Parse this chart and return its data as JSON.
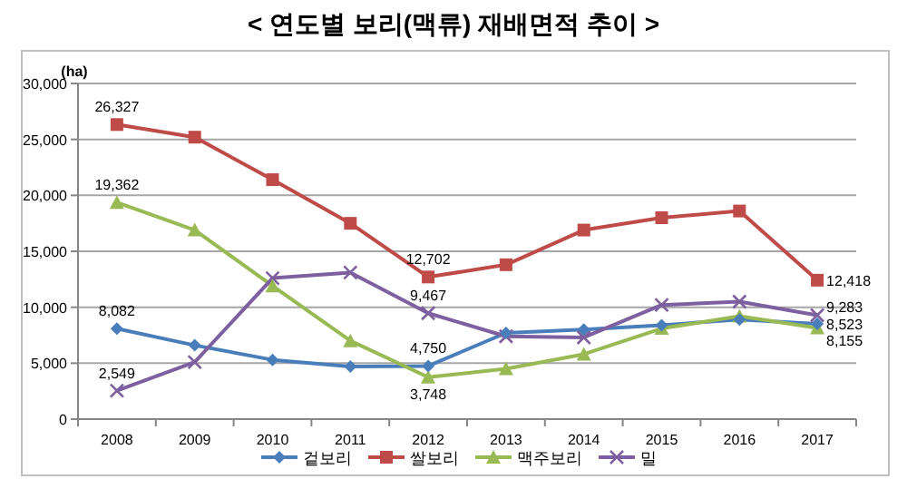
{
  "chart_data": {
    "type": "line",
    "title": "< 연도별 보리(맥류) 재배면적 추이 >",
    "ylabel": "(ha)",
    "categories": [
      "2008",
      "2009",
      "2010",
      "2011",
      "2012",
      "2013",
      "2014",
      "2015",
      "2016",
      "2017"
    ],
    "ylim": [
      0,
      30000
    ],
    "yticks": [
      {
        "value": 0,
        "label": "0"
      },
      {
        "value": 5000,
        "label": "5,000"
      },
      {
        "value": 10000,
        "label": "10,000"
      },
      {
        "value": 15000,
        "label": "15,000"
      },
      {
        "value": 20000,
        "label": "20,000"
      },
      {
        "value": 25000,
        "label": "25,000"
      },
      {
        "value": 30000,
        "label": "30,000"
      }
    ],
    "grid": "y",
    "legend": "bottom",
    "line_style": "solid",
    "series": [
      {
        "name": "겉보리",
        "color": "#4a7ebb",
        "marker": "diamond",
        "values": [
          8082,
          6600,
          5300,
          4700,
          4750,
          7700,
          8000,
          8400,
          8900,
          8523
        ],
        "value_labels": [
          "8,082",
          null,
          null,
          null,
          "4,750",
          null,
          null,
          null,
          null,
          "8,523"
        ]
      },
      {
        "name": "쌀보리",
        "color": "#be4b48",
        "marker": "square",
        "values": [
          26327,
          25200,
          21400,
          17500,
          12702,
          13800,
          16900,
          18000,
          18600,
          12418
        ],
        "value_labels": [
          "26,327",
          null,
          null,
          null,
          "12,702",
          null,
          null,
          null,
          null,
          "12,418"
        ]
      },
      {
        "name": "맥주보리",
        "color": "#98b954",
        "marker": "triangle",
        "values": [
          19362,
          16900,
          11900,
          7000,
          3748,
          4500,
          5800,
          8100,
          9200,
          8155
        ],
        "value_labels": [
          "19,362",
          null,
          null,
          null,
          "3,748",
          null,
          null,
          null,
          null,
          "8,155"
        ]
      },
      {
        "name": "밀",
        "color": "#7d60a0",
        "marker": "cross",
        "values": [
          2549,
          5100,
          12600,
          13100,
          9467,
          7400,
          7300,
          10200,
          10500,
          9283
        ],
        "value_labels": [
          "2,549",
          null,
          null,
          null,
          "9,467",
          null,
          null,
          null,
          null,
          "9,283"
        ]
      }
    ]
  }
}
